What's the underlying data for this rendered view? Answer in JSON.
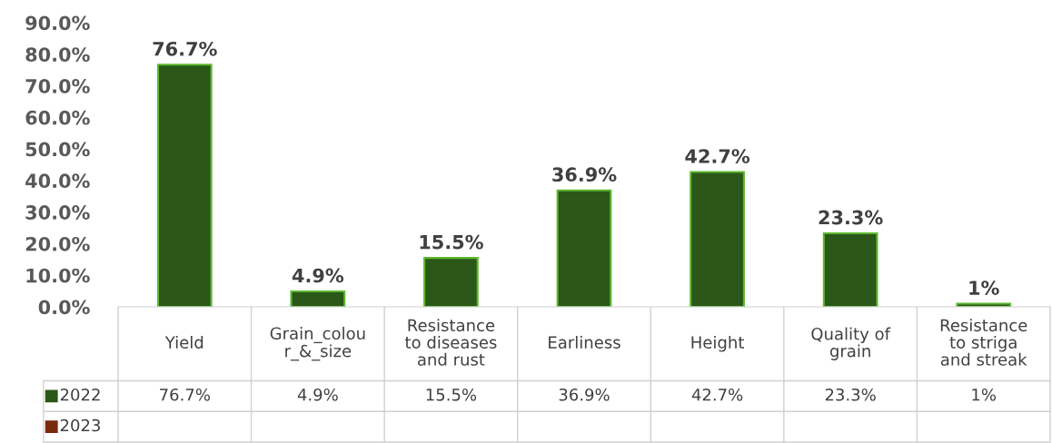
{
  "chart_data": {
    "type": "bar",
    "categories": [
      "Yield",
      "Grain_colou\nr_&_size",
      "Resistance\nto diseases\nand rust",
      "Earliness",
      "Height",
      "Quality of\ngrain",
      "Resistance\nto striga\nand streak"
    ],
    "series": [
      {
        "name": "2022",
        "color": "#2b5719",
        "values": [
          76.7,
          4.9,
          15.5,
          36.9,
          42.7,
          23.3,
          1
        ],
        "value_labels": [
          "76.7%",
          "4.9%",
          "15.5%",
          "36.9%",
          "42.7%",
          "23.3%",
          "1%"
        ]
      },
      {
        "name": "2023",
        "color": "#7a2a0c",
        "values": [
          null,
          null,
          null,
          null,
          null,
          null,
          null
        ]
      }
    ],
    "ylim": [
      0,
      90
    ],
    "yticks": [
      {
        "value": 0,
        "label": "0.0%"
      },
      {
        "value": 10,
        "label": "10.0%"
      },
      {
        "value": 20,
        "label": "20.0%"
      },
      {
        "value": 30,
        "label": "30.0%"
      },
      {
        "value": 40,
        "label": "40.0%"
      },
      {
        "value": 50,
        "label": "50.0%"
      },
      {
        "value": 60,
        "label": "60.0%"
      },
      {
        "value": 70,
        "label": "70.0%"
      },
      {
        "value": 80,
        "label": "80.0%"
      },
      {
        "value": 90,
        "label": "90.0%"
      }
    ],
    "grid": false,
    "legend": "bottom"
  }
}
